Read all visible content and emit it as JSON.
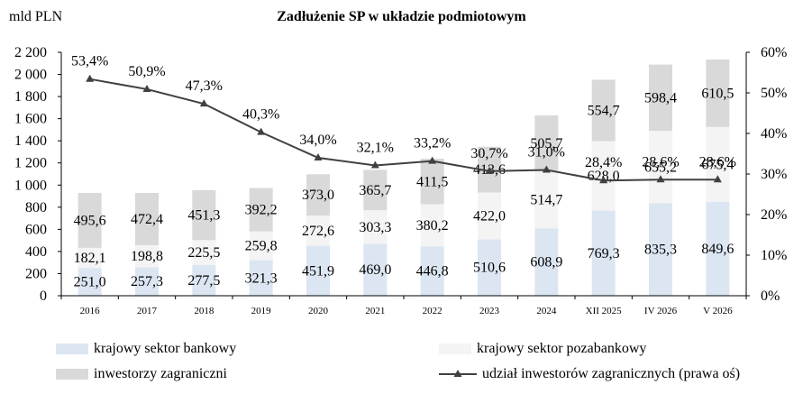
{
  "chart_data": {
    "type": "bar",
    "stacked": true,
    "title": "Zadłużenie SP w układzie podmiotowym",
    "ylabel": "mld PLN",
    "ylim": [
      0,
      2200
    ],
    "y_ticks": [
      "0",
      "200",
      "400",
      "600",
      "800",
      "1 000",
      "1 200",
      "1 400",
      "1 600",
      "1 800",
      "2 000",
      "2 200"
    ],
    "y2lim": [
      0,
      60
    ],
    "y2_ticks": [
      "0%",
      "10%",
      "20%",
      "30%",
      "40%",
      "50%",
      "60%"
    ],
    "categories": [
      "2016",
      "2017",
      "2018",
      "2019",
      "2020",
      "2021",
      "2022",
      "2023",
      "2024",
      "XII 2025",
      "IV 2026",
      "V 2026"
    ],
    "series": [
      {
        "name": "krajowy sektor bankowy",
        "color": "#dce6f2",
        "values": [
          251.0,
          257.3,
          277.5,
          321.3,
          451.9,
          469.0,
          446.8,
          510.6,
          608.9,
          769.3,
          835.3,
          849.6
        ],
        "labels": [
          "251,0",
          "257,3",
          "277,5",
          "321,3",
          "451,9",
          "469,0",
          "446,8",
          "510,6",
          "608,9",
          "769,3",
          "835,3",
          "849,6"
        ]
      },
      {
        "name": "krajowy sektor pozabankowy",
        "color": "#f4f4f4",
        "values": [
          182.1,
          198.8,
          225.5,
          259.8,
          272.6,
          303.3,
          380.2,
          422.0,
          514.7,
          628.0,
          655.2,
          675.4
        ],
        "labels": [
          "182,1",
          "198,8",
          "225,5",
          "259,8",
          "272,6",
          "303,3",
          "380,2",
          "422,0",
          "514,7",
          "628,0",
          "655,2",
          "675,4"
        ]
      },
      {
        "name": "inwestorzy zagraniczni",
        "color": "#d9d9d9",
        "values": [
          495.6,
          472.4,
          451.3,
          392.2,
          373.0,
          365.7,
          411.5,
          413.6,
          505.7,
          554.7,
          598.4,
          610.5
        ],
        "labels": [
          "495,6",
          "472,4",
          "451,3",
          "392,2",
          "373,0",
          "365,7",
          "411,5",
          "413,6",
          "505,7",
          "554,7",
          "598,4",
          "610,5"
        ]
      }
    ],
    "line": {
      "name": "udział inwestorów zagranicznych (prawa oś)",
      "color": "#404040",
      "axis": "right",
      "values": [
        53.4,
        50.9,
        47.3,
        40.3,
        34.0,
        32.1,
        33.2,
        30.7,
        31.0,
        28.4,
        28.6,
        28.6
      ],
      "labels": [
        "53,4%",
        "50,9%",
        "47,3%",
        "40,3%",
        "34,0%",
        "32,1%",
        "33,2%",
        "30,7%",
        "31,0%",
        "28,4%",
        "28,6%",
        "28,6%"
      ]
    },
    "legend_position": "bottom",
    "grid": false
  }
}
